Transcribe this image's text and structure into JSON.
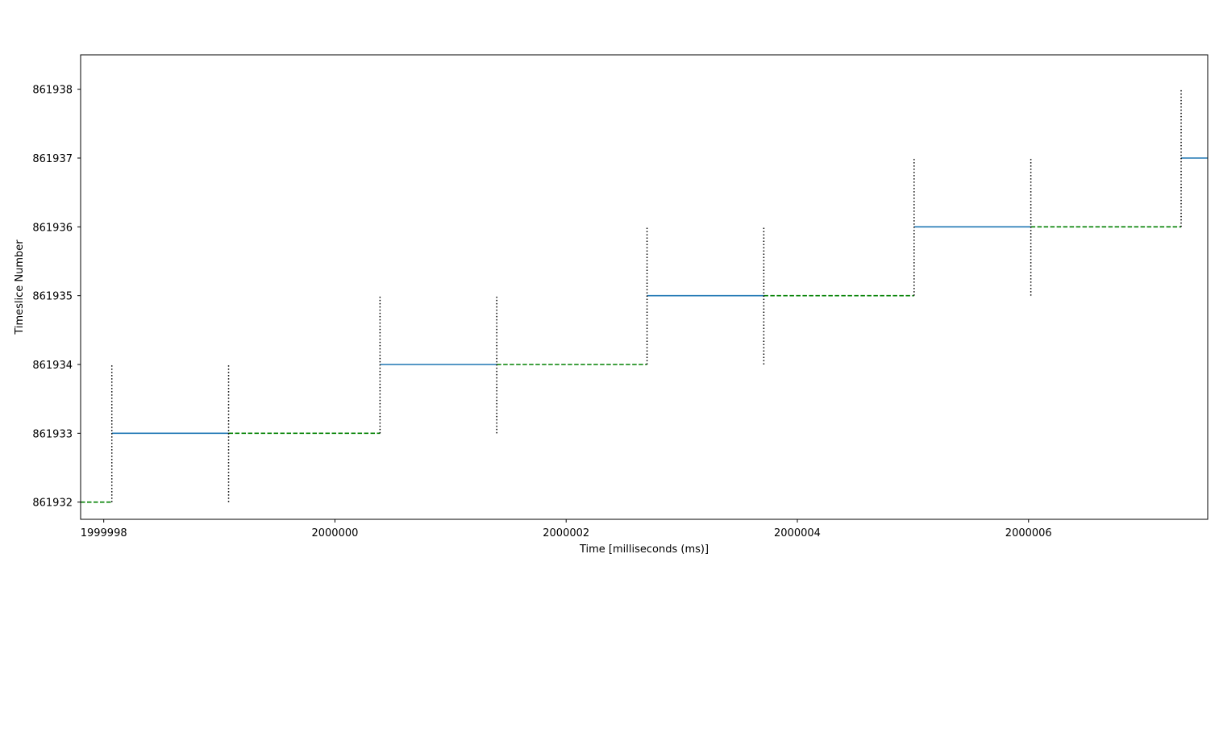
{
  "chart_data": {
    "type": "line",
    "title": "",
    "xlabel": "Time [milliseconds (ms)]",
    "ylabel": "Timeslice Number",
    "xlim": [
      1999997.8,
      2000007.55
    ],
    "ylim": [
      861931.75,
      861938.5
    ],
    "x_ticks": [
      1999998,
      2000000,
      2000002,
      2000004,
      2000006
    ],
    "x_tick_labels": [
      "1999998",
      "2000000",
      "2000002",
      "2000004",
      "2000006"
    ],
    "y_ticks": [
      861932,
      861933,
      861934,
      861935,
      861936,
      861937,
      861938
    ],
    "y_tick_labels": [
      "861932",
      "861933",
      "861934",
      "861935",
      "861936",
      "861937",
      "861938"
    ],
    "grid": false,
    "legend": false,
    "colors": {
      "solid": "#1f77b4",
      "dashed": "#008000",
      "marker": "#000000"
    },
    "series": [
      {
        "style": "solid",
        "segments": [
          {
            "x": [
              1999998.07,
              1999999.08
            ],
            "y": 861933
          },
          {
            "x": [
              2000000.39,
              2000001.4
            ],
            "y": 861934
          },
          {
            "x": [
              2000002.7,
              2000003.71
            ],
            "y": 861935
          },
          {
            "x": [
              2000005.01,
              2000006.02
            ],
            "y": 861936
          },
          {
            "x": [
              2000007.32,
              2000007.55
            ],
            "y": 861937
          }
        ]
      },
      {
        "style": "dashed",
        "segments": [
          {
            "x": [
              1999997.8,
              1999998.07
            ],
            "y": 861932
          },
          {
            "x": [
              1999999.08,
              2000000.39
            ],
            "y": 861933
          },
          {
            "x": [
              2000001.4,
              2000002.7
            ],
            "y": 861934
          },
          {
            "x": [
              2000003.71,
              2000005.01
            ],
            "y": 861935
          },
          {
            "x": [
              2000006.02,
              2000007.32
            ],
            "y": 861936
          }
        ]
      },
      {
        "style": "dotted",
        "vlines": [
          {
            "x": 1999998.07,
            "y": [
              861932,
              861934
            ]
          },
          {
            "x": 1999999.08,
            "y": [
              861932,
              861934
            ]
          },
          {
            "x": 2000000.39,
            "y": [
              861933,
              861935
            ]
          },
          {
            "x": 2000001.4,
            "y": [
              861933,
              861935
            ]
          },
          {
            "x": 2000002.7,
            "y": [
              861934,
              861936
            ]
          },
          {
            "x": 2000003.71,
            "y": [
              861934,
              861936
            ]
          },
          {
            "x": 2000005.01,
            "y": [
              861935,
              861937
            ]
          },
          {
            "x": 2000006.02,
            "y": [
              861935,
              861937
            ]
          },
          {
            "x": 2000007.32,
            "y": [
              861936,
              861938
            ]
          }
        ]
      }
    ]
  }
}
